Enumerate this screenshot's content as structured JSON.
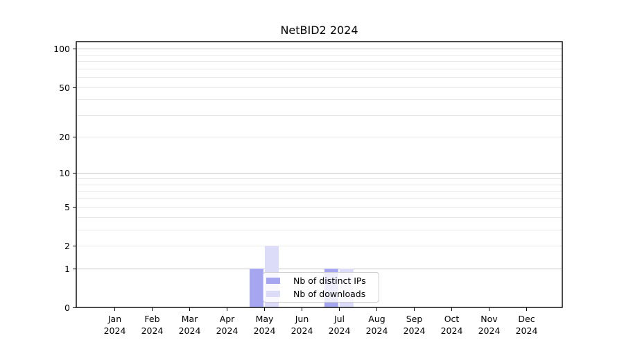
{
  "chart_data": {
    "type": "bar",
    "title": "NetBID2 2024",
    "x_axis": {
      "months": [
        "Jan",
        "Feb",
        "Mar",
        "Apr",
        "May",
        "Jun",
        "Jul",
        "Aug",
        "Sep",
        "Oct",
        "Nov",
        "Dec"
      ],
      "year": "2024"
    },
    "y_axis": {
      "scale": "log1p",
      "min": 0,
      "max": 114,
      "tick_labels": [
        0,
        1,
        2,
        5,
        10,
        20,
        50,
        100
      ],
      "major_gridlines": [
        1,
        10,
        100
      ],
      "minor_gridlines": [
        2,
        3,
        4,
        5,
        6,
        7,
        8,
        9,
        20,
        30,
        40,
        50,
        60,
        70,
        80,
        90
      ]
    },
    "series": [
      {
        "name": "Nb of distinct IPs",
        "color": "#a6a6f0",
        "values": [
          0,
          0,
          0,
          0,
          1,
          0,
          1,
          0,
          0,
          0,
          0,
          0
        ]
      },
      {
        "name": "Nb of downloads",
        "color": "#dcdcf8",
        "values": [
          0,
          0,
          0,
          0,
          2,
          0,
          1,
          0,
          0,
          0,
          0,
          0
        ]
      }
    ],
    "legend": {
      "position": "inside-lower-center"
    },
    "colors": {
      "major_grid": "#c6c6c6",
      "minor_grid": "#e9e9e9",
      "axis": "#000000",
      "background": "#ffffff"
    }
  }
}
